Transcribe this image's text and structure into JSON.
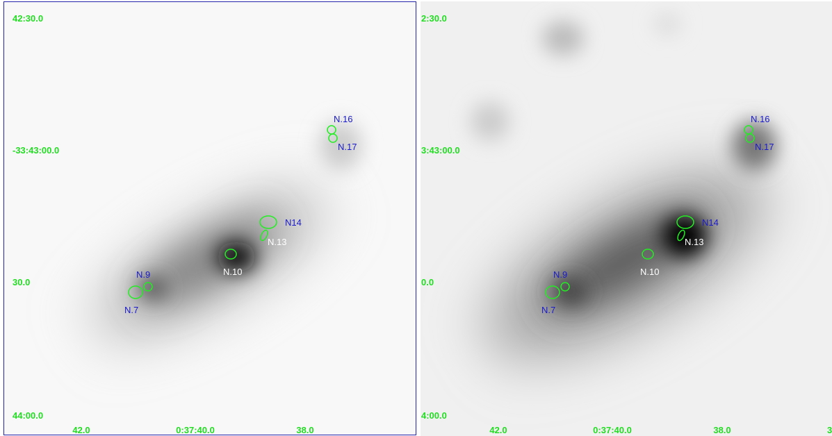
{
  "panels": [
    {
      "dec_labels": [
        "42:30.0",
        "-33:43:00.0",
        "30.0",
        "44:00.0"
      ],
      "ra_labels": [
        "42.0",
        "0:37:40.0",
        "38.0"
      ],
      "regions": [
        {
          "label": "N.16"
        },
        {
          "label": "N.17"
        },
        {
          "label": "N14"
        },
        {
          "label": "N.13"
        },
        {
          "label": "N.10"
        },
        {
          "label": "N.9"
        },
        {
          "label": "N.7"
        }
      ]
    },
    {
      "dec_labels": [
        "2:30.0",
        "3:43:00.0",
        "0.0",
        "4:00.0"
      ],
      "ra_labels": [
        "42.0",
        "0:37:40.0",
        "38.0",
        "3"
      ],
      "regions": [
        {
          "label": "N.16"
        },
        {
          "label": "N.17"
        },
        {
          "label": "N14"
        },
        {
          "label": "N.13"
        },
        {
          "label": "N.10"
        },
        {
          "label": "N.9"
        },
        {
          "label": "N.7"
        }
      ]
    }
  ]
}
